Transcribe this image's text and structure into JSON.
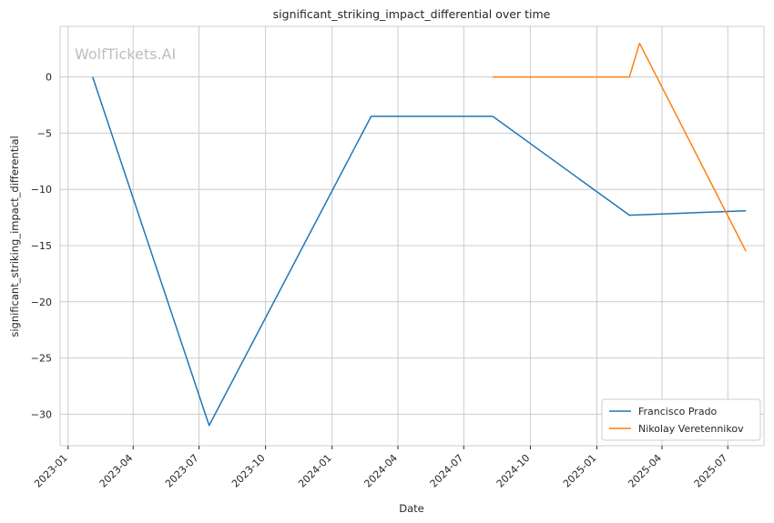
{
  "chart_data": {
    "type": "line",
    "title": "significant_striking_impact_differential over time",
    "xlabel": "Date",
    "ylabel": "significant_striking_impact_differential",
    "watermark": "WolfTickets.AI",
    "x_ticks": [
      "2023-01",
      "2023-04",
      "2023-07",
      "2023-10",
      "2024-01",
      "2024-04",
      "2024-07",
      "2024-10",
      "2025-01",
      "2025-04",
      "2025-07"
    ],
    "y_ticks": [
      0,
      -5,
      -10,
      -15,
      -20,
      -25,
      -30
    ],
    "y_tick_labels": [
      "0",
      "−5",
      "−10",
      "−15",
      "−20",
      "−25",
      "−30"
    ],
    "xlim": [
      "2022-12-21",
      "2025-08-20"
    ],
    "ylim": [
      -32.8,
      4.5
    ],
    "grid": true,
    "legend_position": "lower-right",
    "series": [
      {
        "name": "Francisco Prado",
        "color": "#1f77b4",
        "points": [
          {
            "x": "2023-02-04",
            "y": 0
          },
          {
            "x": "2023-07-15",
            "y": -31
          },
          {
            "x": "2024-02-24",
            "y": -3.5
          },
          {
            "x": "2024-08-10",
            "y": -3.5
          },
          {
            "x": "2025-02-15",
            "y": -12.3
          },
          {
            "x": "2025-07-26",
            "y": -11.9
          }
        ]
      },
      {
        "name": "Nikolay Veretennikov",
        "color": "#ff7f0e",
        "points": [
          {
            "x": "2024-08-10",
            "y": 0
          },
          {
            "x": "2025-02-15",
            "y": 0
          },
          {
            "x": "2025-03-01",
            "y": 3
          },
          {
            "x": "2025-07-26",
            "y": -15.5
          }
        ]
      }
    ]
  }
}
